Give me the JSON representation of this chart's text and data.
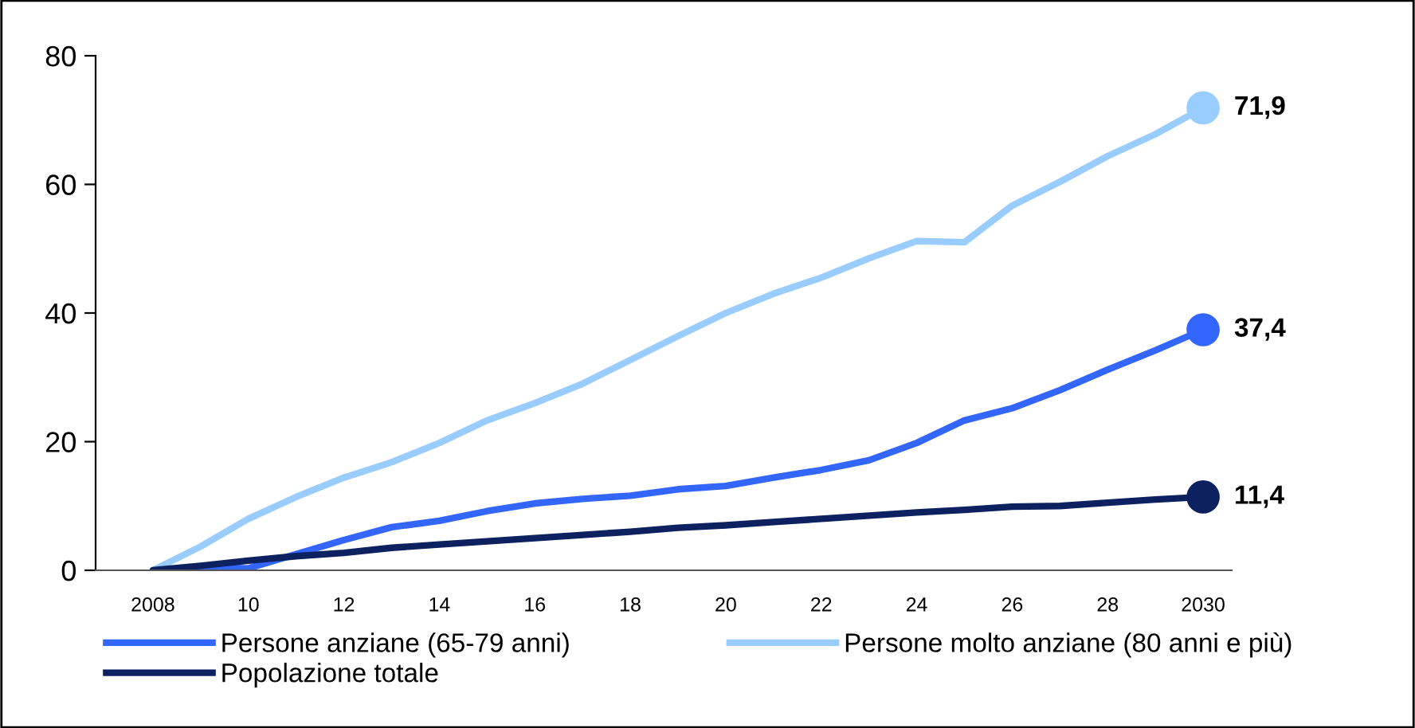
{
  "chart_data": {
    "type": "line",
    "x": [
      2008,
      2009,
      2010,
      2011,
      2012,
      2013,
      2014,
      2015,
      2016,
      2017,
      2018,
      2019,
      2020,
      2021,
      2022,
      2023,
      2024,
      2025,
      2026,
      2027,
      2028,
      2029,
      2030
    ],
    "series": [
      {
        "name": "Persone anziane (65-79 anni)",
        "color": "#3366ff",
        "values": [
          0,
          0.5,
          0.3,
          2.5,
          4.7,
          6.7,
          7.7,
          9.2,
          10.4,
          11.1,
          11.6,
          12.6,
          13.1,
          14.4,
          15.6,
          17.1,
          19.8,
          23.3,
          25.2,
          28,
          31.2,
          34.2,
          37.4
        ],
        "value_labels": [
          null,
          null,
          null,
          null,
          null,
          null,
          null,
          null,
          null,
          null,
          null,
          null,
          null,
          null,
          null,
          null,
          null,
          null,
          null,
          null,
          null,
          null,
          "37,4"
        ]
      },
      {
        "name": "Persone molto anziane (80 anni e più)",
        "color": "#99ccff",
        "values": [
          0,
          3.7,
          8,
          11.4,
          14.4,
          16.8,
          19.8,
          23.3,
          26,
          29,
          32.7,
          36.4,
          40,
          43,
          45.5,
          48.5,
          51.2,
          51,
          56.7,
          60.4,
          64.4,
          67.8,
          71.9
        ],
        "value_labels": [
          null,
          null,
          null,
          null,
          null,
          null,
          null,
          null,
          null,
          null,
          null,
          null,
          null,
          null,
          null,
          null,
          null,
          null,
          null,
          null,
          null,
          null,
          "71,9"
        ]
      },
      {
        "name": "Popolazione totale",
        "color": "#0d2160",
        "values": [
          0,
          0.7,
          1.5,
          2.2,
          2.7,
          3.5,
          4,
          4.5,
          5,
          5.5,
          6,
          6.6,
          7,
          7.5,
          8,
          8.5,
          9,
          9.4,
          9.9,
          10,
          10.5,
          11,
          11.4
        ],
        "value_labels": [
          null,
          null,
          null,
          null,
          null,
          null,
          null,
          null,
          null,
          null,
          null,
          null,
          null,
          null,
          null,
          null,
          null,
          null,
          null,
          null,
          null,
          null,
          "11,4"
        ]
      }
    ],
    "xlim": [
      2006.8,
      2030.6
    ],
    "xticks": [
      {
        "value": 2008,
        "label": "2008"
      },
      {
        "value": 2010,
        "label": "10"
      },
      {
        "value": 2012,
        "label": "12"
      },
      {
        "value": 2014,
        "label": "14"
      },
      {
        "value": 2016,
        "label": "16"
      },
      {
        "value": 2018,
        "label": "18"
      },
      {
        "value": 2020,
        "label": "20"
      },
      {
        "value": 2022,
        "label": "22"
      },
      {
        "value": 2024,
        "label": "24"
      },
      {
        "value": 2026,
        "label": "26"
      },
      {
        "value": 2028,
        "label": "28"
      },
      {
        "value": 2030,
        "label": "2030"
      }
    ],
    "ylim": [
      0,
      80
    ],
    "yticks": [
      0,
      20,
      40,
      60,
      80
    ],
    "grid": false,
    "legend": "bottom",
    "marker": "none",
    "line_style": "solid"
  }
}
